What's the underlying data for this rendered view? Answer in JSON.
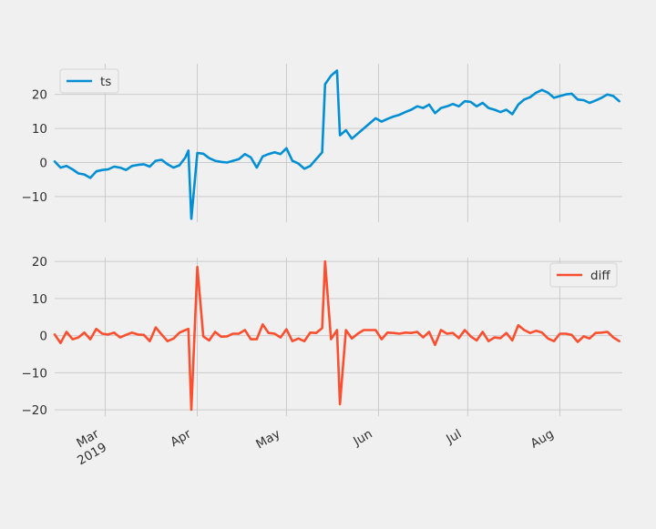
{
  "chart_data": [
    {
      "type": "line",
      "series": [
        {
          "name": "ts",
          "color": "#008fd5",
          "x": [
            "2019-02-12",
            "2019-02-14",
            "2019-02-16",
            "2019-02-18",
            "2019-02-20",
            "2019-02-22",
            "2019-02-24",
            "2019-02-26",
            "2019-02-28",
            "2019-03-02",
            "2019-03-04",
            "2019-03-06",
            "2019-03-08",
            "2019-03-10",
            "2019-03-12",
            "2019-03-14",
            "2019-03-16",
            "2019-03-18",
            "2019-03-20",
            "2019-03-22",
            "2019-03-24",
            "2019-03-26",
            "2019-03-28",
            "2019-03-29",
            "2019-03-30",
            "2019-04-01",
            "2019-04-03",
            "2019-04-05",
            "2019-04-07",
            "2019-04-09",
            "2019-04-11",
            "2019-04-13",
            "2019-04-15",
            "2019-04-17",
            "2019-04-19",
            "2019-04-21",
            "2019-04-23",
            "2019-04-25",
            "2019-04-27",
            "2019-04-29",
            "2019-05-01",
            "2019-05-03",
            "2019-05-05",
            "2019-05-07",
            "2019-05-09",
            "2019-05-11",
            "2019-05-13",
            "2019-05-14",
            "2019-05-16",
            "2019-05-18",
            "2019-05-19",
            "2019-05-21",
            "2019-05-23",
            "2019-05-25",
            "2019-05-27",
            "2019-05-29",
            "2019-05-31",
            "2019-06-02",
            "2019-06-04",
            "2019-06-06",
            "2019-06-08",
            "2019-06-10",
            "2019-06-12",
            "2019-06-14",
            "2019-06-16",
            "2019-06-18",
            "2019-06-20",
            "2019-06-22",
            "2019-06-24",
            "2019-06-26",
            "2019-06-28",
            "2019-06-30",
            "2019-07-02",
            "2019-07-04",
            "2019-07-06",
            "2019-07-08",
            "2019-07-10",
            "2019-07-12",
            "2019-07-14",
            "2019-07-16",
            "2019-07-18",
            "2019-07-20",
            "2019-07-22",
            "2019-07-24",
            "2019-07-26",
            "2019-07-28",
            "2019-07-30",
            "2019-08-01",
            "2019-08-03",
            "2019-08-05",
            "2019-08-07",
            "2019-08-09",
            "2019-08-11",
            "2019-08-13",
            "2019-08-15",
            "2019-08-17",
            "2019-08-19",
            "2019-08-21"
          ],
          "values": [
            0.3,
            -1.5,
            -1.0,
            -2.0,
            -3.2,
            -3.5,
            -4.5,
            -2.6,
            -2.2,
            -2.0,
            -1.2,
            -1.5,
            -2.2,
            -1.0,
            -0.7,
            -0.5,
            -1.2,
            0.5,
            0.8,
            -0.5,
            -1.5,
            -0.8,
            1.5,
            3.5,
            -16.5,
            2.8,
            2.6,
            1.3,
            0.5,
            0.2,
            0.0,
            0.5,
            1.0,
            2.5,
            1.5,
            -1.5,
            1.8,
            2.5,
            3.0,
            2.5,
            4.2,
            0.5,
            -0.3,
            -1.8,
            -1.0,
            1.0,
            3.0,
            23.0,
            25.5,
            27.0,
            8.0,
            9.5,
            7.0,
            8.5,
            10.0,
            11.5,
            13.0,
            12.0,
            12.8,
            13.5,
            14.0,
            14.8,
            15.5,
            16.5,
            16.0,
            17.0,
            14.5,
            16.0,
            16.5,
            17.2,
            16.5,
            18.0,
            17.8,
            16.5,
            17.5,
            16.0,
            15.5,
            14.8,
            15.5,
            14.2,
            17.0,
            18.5,
            19.2,
            20.5,
            21.3,
            20.5,
            19.0,
            19.5,
            20.0,
            20.2,
            18.5,
            18.3,
            17.5,
            18.2,
            19.0,
            20.0,
            19.5,
            18.0
          ]
        }
      ],
      "xlim": [
        "2019-02-12",
        "2019-08-22"
      ],
      "ylim": [
        -17.5,
        29
      ],
      "yticks": [
        -10,
        0,
        10,
        20
      ],
      "ytick_labels": [
        "−10",
        "0",
        "10",
        "20"
      ],
      "grid": true,
      "legend_position": "top-left"
    },
    {
      "type": "line",
      "series": [
        {
          "name": "diff",
          "color": "#fc4f30",
          "x": [
            "2019-02-12",
            "2019-02-14",
            "2019-02-16",
            "2019-02-18",
            "2019-02-20",
            "2019-02-22",
            "2019-02-24",
            "2019-02-26",
            "2019-02-28",
            "2019-03-02",
            "2019-03-04",
            "2019-03-06",
            "2019-03-08",
            "2019-03-10",
            "2019-03-12",
            "2019-03-14",
            "2019-03-16",
            "2019-03-18",
            "2019-03-20",
            "2019-03-22",
            "2019-03-24",
            "2019-03-26",
            "2019-03-28",
            "2019-03-29",
            "2019-03-30",
            "2019-04-01",
            "2019-04-03",
            "2019-04-05",
            "2019-04-07",
            "2019-04-09",
            "2019-04-11",
            "2019-04-13",
            "2019-04-15",
            "2019-04-17",
            "2019-04-19",
            "2019-04-21",
            "2019-04-23",
            "2019-04-25",
            "2019-04-27",
            "2019-04-29",
            "2019-05-01",
            "2019-05-03",
            "2019-05-05",
            "2019-05-07",
            "2019-05-09",
            "2019-05-11",
            "2019-05-13",
            "2019-05-14",
            "2019-05-16",
            "2019-05-18",
            "2019-05-19",
            "2019-05-21",
            "2019-05-23",
            "2019-05-25",
            "2019-05-27",
            "2019-05-29",
            "2019-05-31",
            "2019-06-02",
            "2019-06-04",
            "2019-06-06",
            "2019-06-08",
            "2019-06-10",
            "2019-06-12",
            "2019-06-14",
            "2019-06-16",
            "2019-06-18",
            "2019-06-20",
            "2019-06-22",
            "2019-06-24",
            "2019-06-26",
            "2019-06-28",
            "2019-06-30",
            "2019-07-02",
            "2019-07-04",
            "2019-07-06",
            "2019-07-08",
            "2019-07-10",
            "2019-07-12",
            "2019-07-14",
            "2019-07-16",
            "2019-07-18",
            "2019-07-20",
            "2019-07-22",
            "2019-07-24",
            "2019-07-26",
            "2019-07-28",
            "2019-07-30",
            "2019-08-01",
            "2019-08-03",
            "2019-08-05",
            "2019-08-07",
            "2019-08-09",
            "2019-08-11",
            "2019-08-13",
            "2019-08-15",
            "2019-08-17",
            "2019-08-19",
            "2019-08-21"
          ],
          "values": [
            0.3,
            -2.0,
            1.0,
            -1.0,
            -0.5,
            0.8,
            -1.0,
            1.8,
            0.5,
            0.3,
            0.8,
            -0.5,
            0.2,
            0.8,
            0.3,
            0.2,
            -1.5,
            2.2,
            0.3,
            -1.5,
            -0.8,
            0.8,
            1.5,
            1.8,
            -20.0,
            18.5,
            -0.2,
            -1.3,
            1.0,
            -0.3,
            -0.2,
            0.5,
            0.5,
            1.5,
            -1.0,
            -1.0,
            3.0,
            0.7,
            0.5,
            -0.5,
            1.7,
            -1.5,
            -0.8,
            -1.5,
            0.8,
            0.7,
            2.0,
            20.0,
            -1.0,
            1.5,
            -18.5,
            1.5,
            -0.8,
            0.5,
            1.5,
            1.5,
            1.5,
            -1.0,
            0.8,
            0.7,
            0.5,
            0.8,
            0.7,
            1.0,
            -0.5,
            1.0,
            -2.5,
            1.5,
            0.5,
            0.7,
            -0.7,
            1.5,
            -0.2,
            -1.3,
            1.0,
            -1.5,
            -0.5,
            -0.7,
            0.7,
            -1.3,
            2.8,
            1.5,
            0.7,
            1.3,
            0.8,
            -0.8,
            -1.5,
            0.5,
            0.5,
            0.2,
            -1.7,
            -0.2,
            -0.8,
            0.7,
            0.8,
            1.0,
            -0.5,
            -1.5
          ]
        }
      ],
      "xlim": [
        "2019-02-12",
        "2019-08-22"
      ],
      "ylim": [
        -21.7,
        21
      ],
      "yticks": [
        -20,
        -10,
        0,
        10,
        20
      ],
      "ytick_labels": [
        "−20",
        "−10",
        "0",
        "10",
        "20"
      ],
      "xticks": [
        "2019-03-01",
        "2019-04-01",
        "2019-05-01",
        "2019-06-01",
        "2019-07-01",
        "2019-08-01"
      ],
      "xtick_labels": [
        "Mar\n2019",
        "Apr",
        "May",
        "Jun",
        "Jul",
        "Aug"
      ],
      "grid": true,
      "legend_position": "top-right"
    }
  ]
}
